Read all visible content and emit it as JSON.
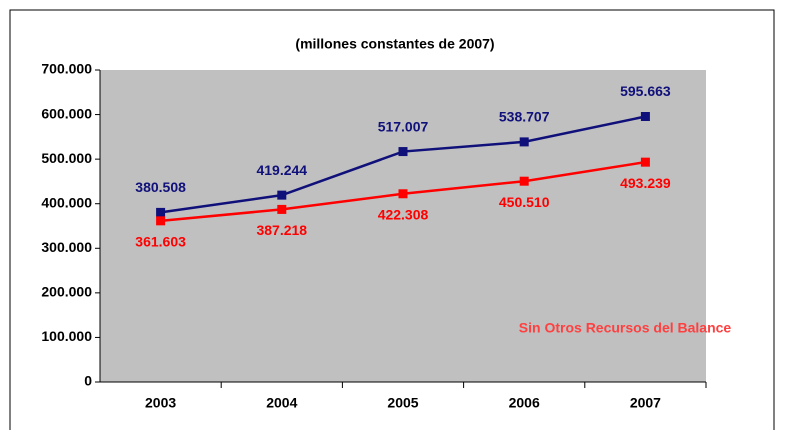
{
  "chart_data": {
    "type": "line",
    "title": "(millones constantes de 2007)",
    "categories": [
      "2003",
      "2004",
      "2005",
      "2006",
      "2007"
    ],
    "series": [
      {
        "color": "#10107a",
        "values": [
          380508,
          419244,
          517007,
          538707,
          595663
        ],
        "value_labels": [
          "380.508",
          "419.244",
          "517.007",
          "538.707",
          "595.663"
        ],
        "label_position": "above"
      },
      {
        "name": "Sin Otros Recursos del Balance",
        "color": "#ff0000",
        "values": [
          361603,
          387218,
          422308,
          450510,
          493239
        ],
        "value_labels": [
          "361.603",
          "387.218",
          "422.308",
          "450.510",
          "493.239"
        ],
        "label_position": "below"
      }
    ],
    "ylim": [
      0,
      700000
    ],
    "yticks": [
      {
        "value": 0,
        "label": "0"
      },
      {
        "value": 100000,
        "label": "100.000"
      },
      {
        "value": 200000,
        "label": "200.000"
      },
      {
        "value": 300000,
        "label": "300.000"
      },
      {
        "value": 400000,
        "label": "400.000"
      },
      {
        "value": 500000,
        "label": "500.000"
      },
      {
        "value": 600000,
        "label": "600.000"
      },
      {
        "value": 700000,
        "label": "700.000"
      }
    ],
    "grid": false
  }
}
